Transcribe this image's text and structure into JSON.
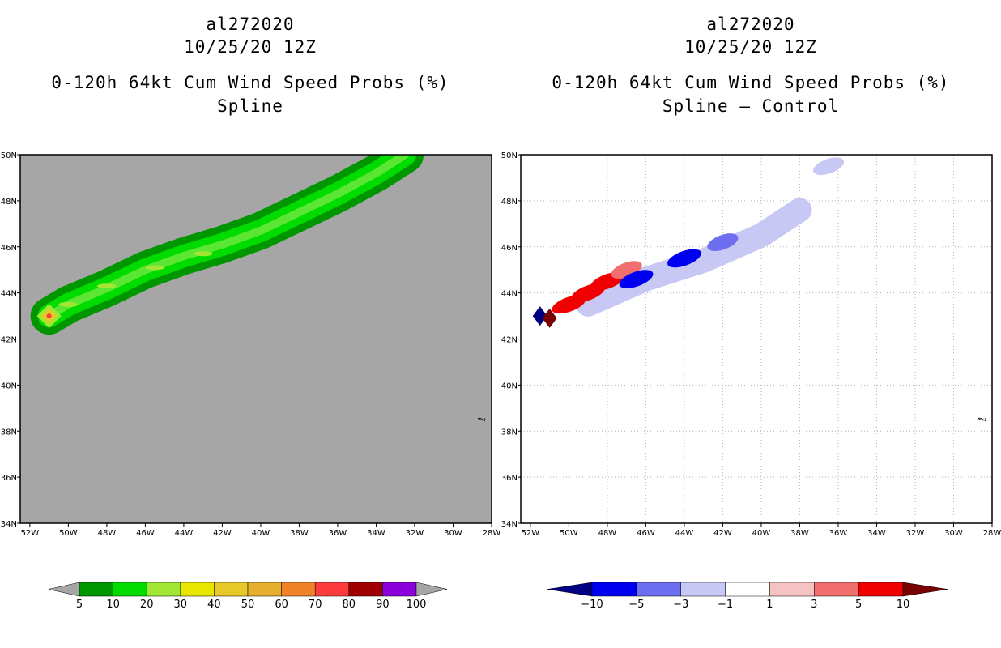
{
  "chart_data": [
    {
      "type": "heatmap",
      "storm_id": "al272020",
      "date": "10/25/20 12Z",
      "title": "0-120h 64kt Cum Wind Speed Probs (%)",
      "subtitle": "Spline",
      "x_ticks": [
        "52W",
        "50W",
        "48W",
        "46W",
        "44W",
        "42W",
        "40W",
        "38W",
        "36W",
        "34W",
        "32W",
        "30W",
        "28W"
      ],
      "y_ticks": [
        "50N",
        "48N",
        "46N",
        "44N",
        "42N",
        "40N",
        "38N",
        "36N",
        "34N"
      ],
      "xlim": [
        -52.5,
        -28
      ],
      "ylim": [
        34,
        50
      ],
      "grid": false,
      "side_mark": "ℓ",
      "colorbar_labels": [
        "5",
        "10",
        "20",
        "30",
        "40",
        "50",
        "60",
        "70",
        "80",
        "90",
        "100"
      ],
      "colorbar_colors": [
        "#a6a6a6",
        "#009600",
        "#00dc00",
        "#a0e632",
        "#e6e600",
        "#e6c828",
        "#e6af2d",
        "#f08228",
        "#fa3c3c",
        "#a00000",
        "#8c00dc",
        "#a6a6a6"
      ],
      "background": "#a6a6a6",
      "swath_centerline": [
        [
          -51,
          43
        ],
        [
          -50,
          43.5
        ],
        [
          -48,
          44.2
        ],
        [
          -46,
          45
        ],
        [
          -44,
          45.6
        ],
        [
          -42,
          46.1
        ],
        [
          -40,
          46.7
        ],
        [
          -38,
          47.5
        ],
        [
          -36,
          48.3
        ],
        [
          -34,
          49.2
        ],
        [
          -32.5,
          50
        ]
      ],
      "peak_values": [
        {
          "lon": -51,
          "lat": 43,
          "value": 75
        },
        {
          "lon": -50,
          "lat": 43.5,
          "value": 30
        },
        {
          "lon": -48,
          "lat": 44.3,
          "value": 30
        },
        {
          "lon": -45.5,
          "lat": 45.1,
          "value": 25
        },
        {
          "lon": -43,
          "lat": 45.7,
          "value": 25
        }
      ]
    },
    {
      "type": "heatmap",
      "storm_id": "al272020",
      "date": "10/25/20 12Z",
      "title": "0-120h 64kt Cum Wind Speed Probs (%)",
      "subtitle": "Spline — Control",
      "x_ticks": [
        "52W",
        "50W",
        "48W",
        "46W",
        "44W",
        "42W",
        "40W",
        "38W",
        "36W",
        "34W",
        "32W",
        "30W",
        "28W"
      ],
      "y_ticks": [
        "50N",
        "48N",
        "46N",
        "44N",
        "42N",
        "40N",
        "38N",
        "36N",
        "34N"
      ],
      "xlim": [
        -52.5,
        -28
      ],
      "ylim": [
        34,
        50
      ],
      "grid": true,
      "side_mark": "ℓ",
      "colorbar_labels": [
        "−10",
        "−5",
        "−3",
        "−1",
        "1",
        "3",
        "5",
        "10"
      ],
      "colorbar_colors": [
        "#000082",
        "#0000f0",
        "#6e6ef0",
        "#c8c8f5",
        "#ffffff",
        "#f5c3c3",
        "#f06e6e",
        "#f00000",
        "#780000"
      ],
      "features": [
        {
          "lon": -51.5,
          "lat": 43,
          "value": -12
        },
        {
          "lon": -51,
          "lat": 42.9,
          "value": 12
        },
        {
          "lon": -50,
          "lat": 43.5,
          "value": 8
        },
        {
          "lon": -49,
          "lat": 44,
          "value": 7
        },
        {
          "lon": -48,
          "lat": 44.5,
          "value": 6
        },
        {
          "lon": -47,
          "lat": 45,
          "value": 4
        },
        {
          "lon": -46.5,
          "lat": 44.6,
          "value": -7
        },
        {
          "lon": -44,
          "lat": 45.5,
          "value": -6
        },
        {
          "lon": -42,
          "lat": 46.2,
          "value": -4
        },
        {
          "lon": -39,
          "lat": 47.2,
          "value": -2
        },
        {
          "lon": -36.5,
          "lat": 49.5,
          "value": -2
        }
      ]
    }
  ]
}
